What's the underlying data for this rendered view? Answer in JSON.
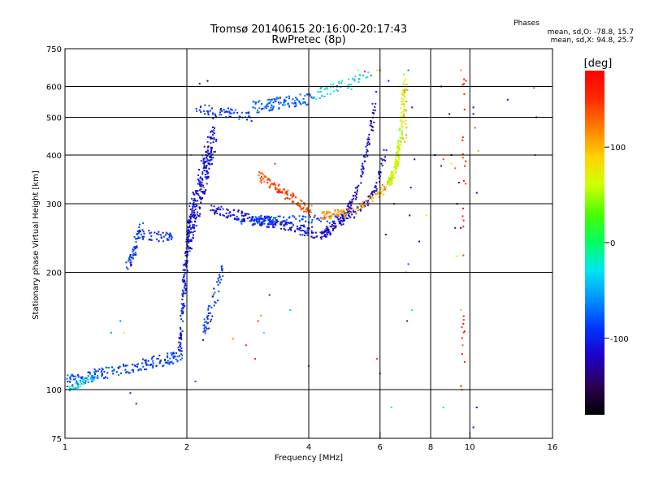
{
  "chart_data": {
    "type": "scatter",
    "title": "Tromsø 20140615 20:16:00-20:17:43",
    "subtitle": "RwPretec (8p)",
    "xlabel": "Frequency [MHz]",
    "ylabel": "Stationary phase Virtual Height [km]",
    "x_scale": "log",
    "y_scale": "log",
    "xlim": [
      1,
      16
    ],
    "ylim": [
      75,
      750
    ],
    "x_ticks": [
      1,
      2,
      4,
      6,
      8,
      10,
      16
    ],
    "y_ticks": [
      75,
      100,
      200,
      300,
      400,
      500,
      600,
      750
    ],
    "grid_x": [
      2,
      4,
      6,
      8,
      10
    ],
    "grid_y": [
      100,
      200,
      300,
      400,
      500,
      600
    ],
    "grid": true,
    "phase_stats": {
      "heading": "Phases",
      "line1": "mean, sd,O: -78.8, 15.7",
      "line2": "mean, sd,X:  94.8, 25.7"
    },
    "colorbar": {
      "label": "[deg]",
      "ticks": [
        100,
        0,
        -100
      ],
      "range": [
        -180,
        180
      ],
      "palette": "rainbow"
    },
    "traces": [
      {
        "x0": 1.0,
        "x1": 1.95,
        "y0": 105,
        "y1": 122,
        "phase": -85,
        "n": 190,
        "spread": 0.035,
        "curve": "linear"
      },
      {
        "x0": 1.0,
        "x1": 1.2,
        "y0": 100,
        "y1": 108,
        "phase": -40,
        "n": 40,
        "spread": 0.02,
        "curve": "linear"
      },
      {
        "x0": 1.42,
        "x1": 1.55,
        "y0": 205,
        "y1": 260,
        "phase": -95,
        "n": 60,
        "spread": 0.04,
        "curve": "linear"
      },
      {
        "x0": 1.55,
        "x1": 1.85,
        "y0": 250,
        "y1": 245,
        "phase": -100,
        "n": 40,
        "spread": 0.03,
        "curve": "linear"
      },
      {
        "x0": 1.92,
        "x1": 2.02,
        "y0": 130,
        "y1": 260,
        "phase": -105,
        "n": 120,
        "spread": 0.05,
        "curve": "linear"
      },
      {
        "x0": 2.0,
        "x1": 2.35,
        "y0": 240,
        "y1": 460,
        "phase": -110,
        "n": 260,
        "spread": 0.12,
        "curve": "linear"
      },
      {
        "x0": 2.2,
        "x1": 2.45,
        "y0": 140,
        "y1": 200,
        "phase": -90,
        "n": 60,
        "spread": 0.05,
        "curve": "linear"
      },
      {
        "x0": 2.3,
        "x1": 4.3,
        "y0": 290,
        "y1": 250,
        "phase": -110,
        "n": 200,
        "spread": 0.03,
        "curve": "linear"
      },
      {
        "x0": 4.3,
        "x1": 5.85,
        "y0": 250,
        "y1": 570,
        "phase": -115,
        "n": 170,
        "spread": 0.03,
        "curve": "exp"
      },
      {
        "x0": 2.6,
        "x1": 4.8,
        "y0": 270,
        "y1": 275,
        "phase": -85,
        "n": 120,
        "spread": 0.025,
        "curve": "linear"
      },
      {
        "x0": 4.8,
        "x1": 6.2,
        "y0": 275,
        "y1": 410,
        "phase": -110,
        "n": 80,
        "spread": 0.03,
        "curve": "exp"
      },
      {
        "x0": 2.1,
        "x1": 2.9,
        "y0": 530,
        "y1": 500,
        "phase": -90,
        "n": 60,
        "spread": 0.03,
        "curve": "linear"
      },
      {
        "x0": 2.9,
        "x1": 4.1,
        "y0": 530,
        "y1": 560,
        "phase": -75,
        "n": 110,
        "spread": 0.035,
        "curve": "linear"
      },
      {
        "x0": 4.1,
        "x1": 5.6,
        "y0": 570,
        "y1": 640,
        "phase": -30,
        "n": 50,
        "spread": 0.03,
        "curve": "linear"
      },
      {
        "x0": 3.0,
        "x1": 4.1,
        "y0": 355,
        "y1": 285,
        "phase": 140,
        "n": 110,
        "spread": 0.03,
        "curve": "linear"
      },
      {
        "x0": 4.3,
        "x1": 6.3,
        "y0": 280,
        "y1": 340,
        "phase": 110,
        "n": 100,
        "spread": 0.025,
        "curve": "exp"
      },
      {
        "x0": 6.3,
        "x1": 6.9,
        "y0": 340,
        "y1": 640,
        "phase": 60,
        "n": 160,
        "spread": 0.025,
        "curve": "exp"
      },
      {
        "x0": 6.9,
        "x1": 6.95,
        "y0": 430,
        "y1": 630,
        "phase": 100,
        "n": 20,
        "spread": 0.02,
        "curve": "linear"
      },
      {
        "x0": 9.6,
        "x1": 9.7,
        "y0": 90,
        "y1": 650,
        "phase": 160,
        "n": 30,
        "spread": 0.01,
        "curve": "linear"
      }
    ],
    "scattered_points": [
      [
        1.37,
        150,
        -60
      ],
      [
        1.4,
        140,
        60
      ],
      [
        1.45,
        98,
        -100
      ],
      [
        1.5,
        92,
        -90
      ],
      [
        1.3,
        140,
        -60
      ],
      [
        2.15,
        610,
        -120
      ],
      [
        2.05,
        400,
        110
      ],
      [
        2.1,
        105,
        -80
      ],
      [
        2.25,
        620,
        -140
      ],
      [
        2.2,
        330,
        140
      ],
      [
        2.55,
        200,
        40
      ],
      [
        2.6,
        135,
        120
      ],
      [
        2.8,
        130,
        160
      ],
      [
        3.0,
        150,
        150
      ],
      [
        3.05,
        155,
        120
      ],
      [
        3.1,
        140,
        -30
      ],
      [
        2.95,
        120,
        170
      ],
      [
        3.2,
        175,
        -100
      ],
      [
        3.3,
        380,
        150
      ],
      [
        3.6,
        160,
        -40
      ],
      [
        4.0,
        115,
        -80
      ],
      [
        4.7,
        600,
        -130
      ],
      [
        5.1,
        590,
        -30
      ],
      [
        5.3,
        660,
        60
      ],
      [
        5.5,
        655,
        160
      ],
      [
        5.7,
        640,
        150
      ],
      [
        5.9,
        660,
        60
      ],
      [
        6.0,
        660,
        150
      ],
      [
        6.05,
        380,
        -110
      ],
      [
        6.3,
        620,
        -100
      ],
      [
        6.7,
        600,
        80
      ],
      [
        7.05,
        660,
        -70
      ],
      [
        7.2,
        530,
        -110
      ],
      [
        7.3,
        390,
        -140
      ],
      [
        7.15,
        330,
        -110
      ],
      [
        6.2,
        250,
        -130
      ],
      [
        6.5,
        300,
        -120
      ],
      [
        7.1,
        280,
        -130
      ],
      [
        7.2,
        160,
        -10
      ],
      [
        7.0,
        150,
        -100
      ],
      [
        7.05,
        210,
        -80
      ],
      [
        6.95,
        200,
        130
      ],
      [
        5.9,
        120,
        150
      ],
      [
        6.0,
        110,
        -110
      ],
      [
        6.4,
        90,
        0
      ],
      [
        7.5,
        240,
        -140
      ],
      [
        8.2,
        400,
        -140
      ],
      [
        8.5,
        375,
        -120
      ],
      [
        8.6,
        390,
        150
      ],
      [
        8.5,
        600,
        -130
      ],
      [
        8.6,
        90,
        0
      ],
      [
        8.9,
        510,
        -140
      ],
      [
        9.0,
        400,
        -150
      ],
      [
        9.0,
        380,
        60
      ],
      [
        9.2,
        370,
        130
      ],
      [
        9.3,
        300,
        -130
      ],
      [
        9.4,
        340,
        -110
      ],
      [
        9.5,
        260,
        -140
      ],
      [
        9.3,
        220,
        80
      ],
      [
        9.5,
        160,
        40
      ],
      [
        9.6,
        130,
        130
      ],
      [
        10.2,
        530,
        -130
      ],
      [
        10.2,
        510,
        -140
      ],
      [
        10.3,
        470,
        140
      ],
      [
        10.5,
        410,
        100
      ],
      [
        10.4,
        320,
        -120
      ],
      [
        10.2,
        80,
        -120
      ],
      [
        10.4,
        90,
        -120
      ],
      [
        12.4,
        555,
        -120
      ],
      [
        14.4,
        595,
        140
      ],
      [
        14.5,
        400,
        150
      ],
      [
        14.6,
        500,
        -130
      ],
      [
        9.5,
        660,
        110
      ],
      [
        9.2,
        260,
        -110
      ],
      [
        7.8,
        280,
        80
      ]
    ]
  }
}
